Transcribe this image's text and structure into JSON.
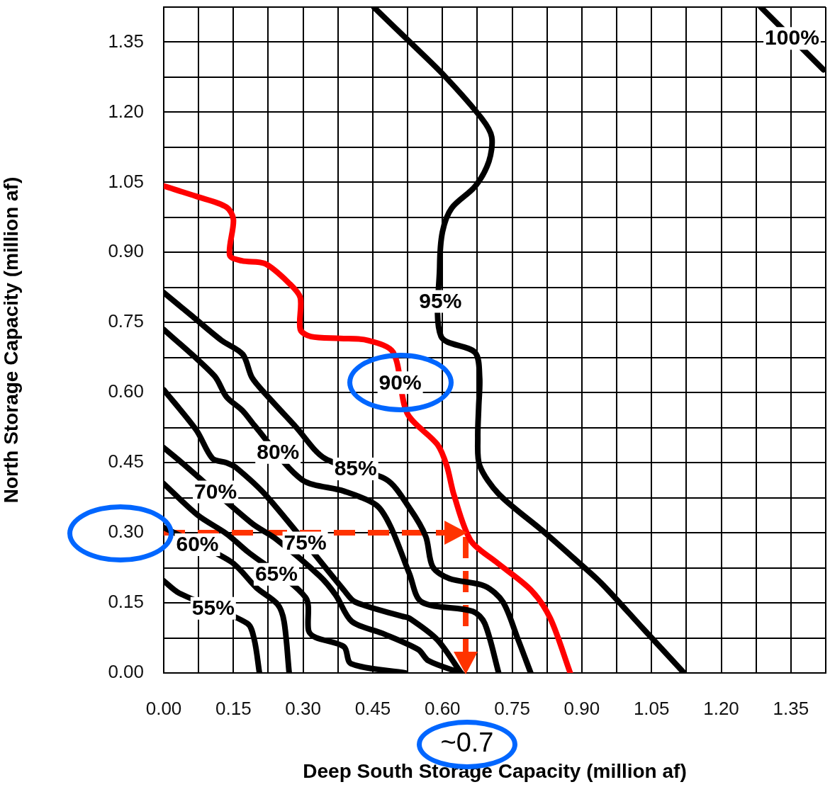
{
  "chart_data": {
    "type": "line",
    "xlabel": "Deep South Storage Capacity (million af)",
    "ylabel": "North Storage Capacity (million af)",
    "xlim": [
      0,
      1.425
    ],
    "ylim": [
      0,
      1.425
    ],
    "xticks": [
      {
        "value": 0,
        "label": "0.00"
      },
      {
        "value": 0.075,
        "label": null
      },
      {
        "value": 0.15,
        "label": "0.15"
      },
      {
        "value": 0.225,
        "label": null
      },
      {
        "value": 0.3,
        "label": "0.30"
      },
      {
        "value": 0.375,
        "label": null
      },
      {
        "value": 0.45,
        "label": "0.45"
      },
      {
        "value": 0.525,
        "label": null
      },
      {
        "value": 0.6,
        "label": "0.60"
      },
      {
        "value": 0.675,
        "label": null
      },
      {
        "value": 0.75,
        "label": "0.75"
      },
      {
        "value": 0.825,
        "label": null
      },
      {
        "value": 0.9,
        "label": "0.90"
      },
      {
        "value": 0.975,
        "label": null
      },
      {
        "value": 1.05,
        "label": "1.05"
      },
      {
        "value": 1.125,
        "label": null
      },
      {
        "value": 1.2,
        "label": "1.20"
      },
      {
        "value": 1.275,
        "label": null
      },
      {
        "value": 1.35,
        "label": "1.35"
      },
      {
        "value": 1.425,
        "label": null
      }
    ],
    "yticks": [
      {
        "value": 0,
        "label": "0.00"
      },
      {
        "value": 0.075,
        "label": null
      },
      {
        "value": 0.15,
        "label": "0.15"
      },
      {
        "value": 0.225,
        "label": null
      },
      {
        "value": 0.3,
        "label": "0.30"
      },
      {
        "value": 0.375,
        "label": null
      },
      {
        "value": 0.45,
        "label": "0.45"
      },
      {
        "value": 0.525,
        "label": null
      },
      {
        "value": 0.6,
        "label": "0.60"
      },
      {
        "value": 0.675,
        "label": null
      },
      {
        "value": 0.75,
        "label": "0.75"
      },
      {
        "value": 0.825,
        "label": null
      },
      {
        "value": 0.9,
        "label": "0.90"
      },
      {
        "value": 0.975,
        "label": null
      },
      {
        "value": 1.05,
        "label": "1.05"
      },
      {
        "value": 1.125,
        "label": null
      },
      {
        "value": 1.2,
        "label": "1.20"
      },
      {
        "value": 1.275,
        "label": null
      },
      {
        "value": 1.35,
        "label": "1.35"
      },
      {
        "value": 1.425,
        "label": null
      }
    ],
    "grid": true,
    "marker": "none",
    "line_style": "solid",
    "series": [
      {
        "name": "55%",
        "color": "#000000",
        "x": [
          0,
          0.033,
          0.18,
          0.195,
          0.206
        ],
        "values": [
          0.197,
          0.171,
          0.106,
          0.071,
          0
        ]
      },
      {
        "name": "60%",
        "color": "#000000",
        "x": [
          0,
          0.145,
          0.2,
          0.245,
          0.259,
          0.27
        ],
        "values": [
          0.311,
          0.238,
          0.182,
          0.147,
          0.11,
          0
        ]
      },
      {
        "name": "65%",
        "color": "#000000",
        "x": [
          0,
          0.074,
          0.135,
          0.18,
          0.305,
          0.312,
          0.327,
          0.388,
          0.403,
          0.52
        ],
        "values": [
          0.405,
          0.337,
          0.298,
          0.26,
          0.162,
          0.09,
          0.076,
          0.056,
          0.02,
          0
        ]
      },
      {
        "name": "70%",
        "color": "#000000",
        "x": [
          0,
          0.033,
          0.19,
          0.24,
          0.335,
          0.37,
          0.405,
          0.47,
          0.548,
          0.57,
          0.64
        ],
        "values": [
          0.482,
          0.455,
          0.32,
          0.288,
          0.208,
          0.167,
          0.11,
          0.085,
          0.05,
          0.026,
          0
        ]
      },
      {
        "name": "75%",
        "color": "#000000",
        "x": [
          0,
          0.07,
          0.105,
          0.135,
          0.155,
          0.221,
          0.388,
          0.412,
          0.514,
          0.529,
          0.589,
          0.64
        ],
        "values": [
          0.606,
          0.52,
          0.459,
          0.45,
          0.44,
          0.379,
          0.177,
          0.152,
          0.121,
          0.117,
          0.071,
          0
        ]
      },
      {
        "name": "80%",
        "color": "#000000",
        "x": [
          0,
          0.109,
          0.135,
          0.17,
          0.195,
          0.297,
          0.388,
          0.458,
          0.488,
          0.529,
          0.555,
          0.665,
          0.691,
          0.721
        ],
        "values": [
          0.735,
          0.636,
          0.591,
          0.561,
          0.53,
          0.414,
          0.389,
          0.359,
          0.314,
          0.212,
          0.152,
          0.132,
          0.106,
          0
        ]
      },
      {
        "name": "85%",
        "color": "#000000",
        "x": [
          0,
          0.062,
          0.124,
          0.17,
          0.19,
          0.221,
          0.284,
          0.347,
          0.479,
          0.529,
          0.564,
          0.579,
          0.615,
          0.691,
          0.73,
          0.761,
          0.79
        ],
        "values": [
          0.814,
          0.763,
          0.712,
          0.682,
          0.632,
          0.595,
          0.527,
          0.459,
          0.414,
          0.353,
          0.292,
          0.227,
          0.202,
          0.186,
          0.152,
          0.076,
          0
        ]
      },
      {
        "name": "90%",
        "color": "#ff0000",
        "x": [
          0,
          0.07,
          0.135,
          0.15,
          0.142,
          0.168,
          0.218,
          0.271,
          0.294,
          0.294,
          0.317,
          0.38,
          0.438,
          0.494,
          0.524,
          0.589,
          0.609,
          0.625,
          0.661,
          0.715,
          0.791,
          0.832,
          0.875
        ],
        "values": [
          1.042,
          1.02,
          0.997,
          0.97,
          0.894,
          0.882,
          0.876,
          0.833,
          0.803,
          0.735,
          0.72,
          0.716,
          0.712,
          0.686,
          0.556,
          0.489,
          0.444,
          0.38,
          0.283,
          0.238,
          0.177,
          0.117,
          0
        ]
      },
      {
        "name": "95%",
        "color": "#000000",
        "x": [
          0.453,
          0.53,
          0.605,
          0.685,
          0.706,
          0.7,
          0.67,
          0.62,
          0.6,
          0.594,
          0.597,
          0.67,
          0.68,
          0.678,
          0.676,
          0.68,
          0.721,
          0.817,
          0.88,
          0.942,
          1.03,
          1.12
        ],
        "values": [
          1.424,
          1.35,
          1.277,
          1.186,
          1.147,
          1.095,
          1.041,
          0.995,
          0.944,
          0.87,
          0.72,
          0.686,
          0.632,
          0.57,
          0.505,
          0.444,
          0.383,
          0.303,
          0.248,
          0.192,
          0.097,
          0
        ]
      },
      {
        "name": "100%",
        "color": "#000000",
        "x": [
          1.285,
          1.42
        ],
        "values": [
          1.425,
          1.291
        ]
      },
      {
        "color": "#ff3300",
        "line_style": "dashed",
        "x": [
          0,
          0.65,
          0.65
        ],
        "values": [
          0.3,
          0.3,
          0
        ]
      }
    ],
    "annotations": [
      "~0.7"
    ]
  }
}
